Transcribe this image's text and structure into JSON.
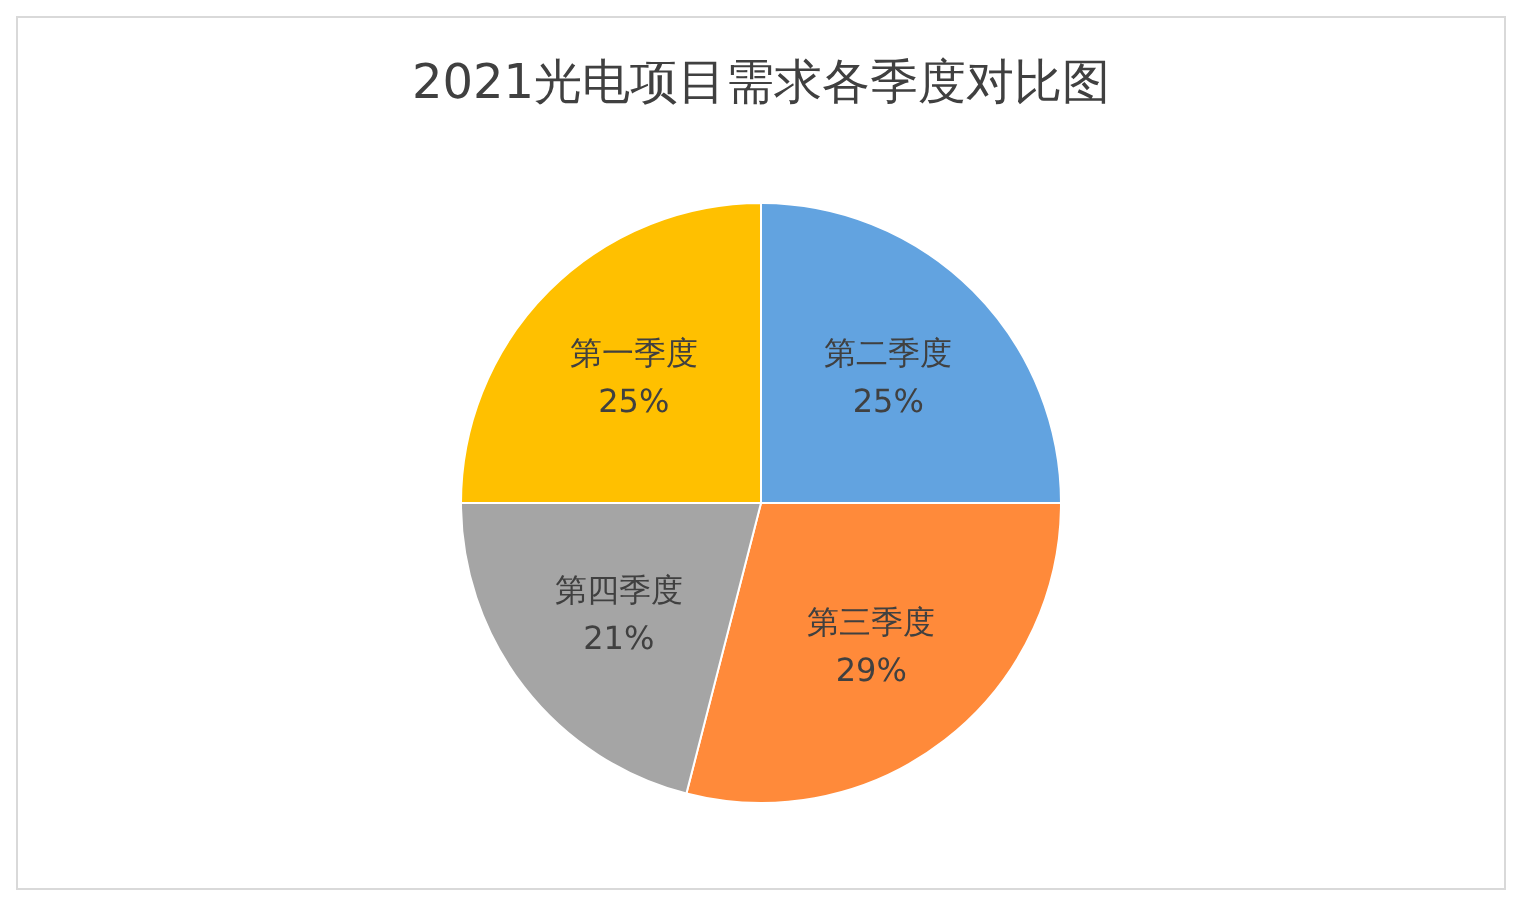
{
  "chart_data": {
    "type": "pie",
    "title": "2021光电项目需求各季度对比图",
    "categories": [
      "第一季度",
      "第二季度",
      "第三季度",
      "第四季度"
    ],
    "values": [
      25,
      25,
      29,
      21
    ],
    "value_labels": [
      "25%",
      "25%",
      "29%",
      "21%"
    ],
    "colors": [
      "#ffc000",
      "#62a3e0",
      "#ff8a3a",
      "#a5a5a5"
    ],
    "legend": false
  }
}
